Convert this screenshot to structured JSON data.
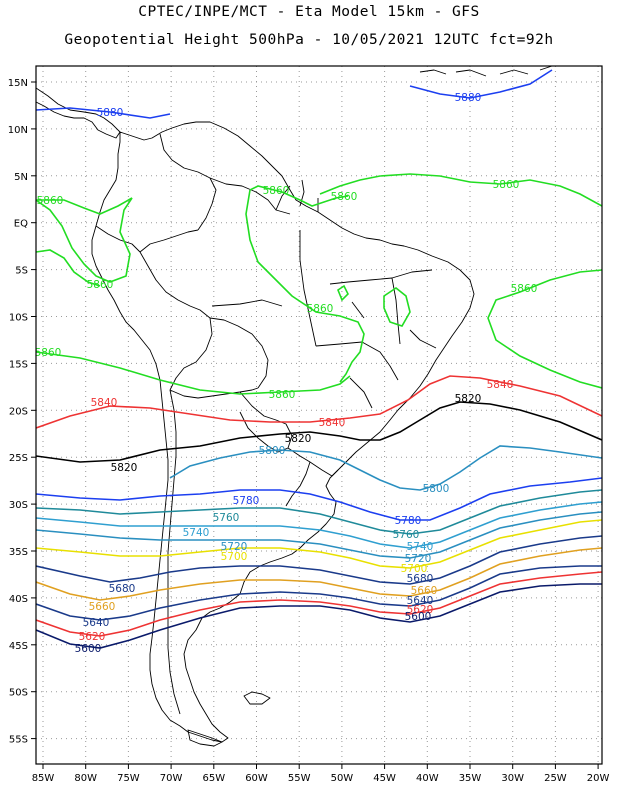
{
  "title_line1": "CPTEC/INPE/MCT -  Eta Model 15km - GFS",
  "title_line2": "Geopotential Height 500hPa - 10/05/2021 12UTC fct=92h",
  "axes": {
    "lon_labels": [
      "85W",
      "80W",
      "75W",
      "70W",
      "65W",
      "60W",
      "55W",
      "50W",
      "45W",
      "40W",
      "35W",
      "30W",
      "25W",
      "20W"
    ],
    "lat_labels": [
      "15N",
      "10N",
      "5N",
      "EQ",
      "5S",
      "10S",
      "15S",
      "20S",
      "25S",
      "30S",
      "35S",
      "40S",
      "45S",
      "50S",
      "55S"
    ]
  },
  "contour_labels": [
    {
      "text": "5880",
      "color": "#1c3ff0"
    },
    {
      "text": "5880",
      "color": "#1c3ff0"
    },
    {
      "text": "5860",
      "color": "#22dd22"
    },
    {
      "text": "5860",
      "color": "#22dd22"
    },
    {
      "text": "5860",
      "color": "#22dd22"
    },
    {
      "text": "5860",
      "color": "#22dd22"
    },
    {
      "text": "5860",
      "color": "#22dd22"
    },
    {
      "text": "5860",
      "color": "#22dd22"
    },
    {
      "text": "5860",
      "color": "#22dd22"
    },
    {
      "text": "5860",
      "color": "#22dd22"
    },
    {
      "text": "5860",
      "color": "#22dd22"
    },
    {
      "text": "5840",
      "color": "#ee3333"
    },
    {
      "text": "5840",
      "color": "#ee3333"
    },
    {
      "text": "5840",
      "color": "#ee3333"
    },
    {
      "text": "5820",
      "color": "#000000"
    },
    {
      "text": "5820",
      "color": "#000000"
    },
    {
      "text": "5820",
      "color": "#000000"
    },
    {
      "text": "5800",
      "color": "#2a8fc0"
    },
    {
      "text": "5800",
      "color": "#2a8fc0"
    },
    {
      "text": "5780",
      "color": "#1c3ff0"
    },
    {
      "text": "5780",
      "color": "#1c3ff0"
    },
    {
      "text": "5760",
      "color": "#1f8a9a"
    },
    {
      "text": "5760",
      "color": "#1f8a9a"
    },
    {
      "text": "5740",
      "color": "#2f9fd0"
    },
    {
      "text": "5740",
      "color": "#2f9fd0"
    },
    {
      "text": "5720",
      "color": "#2a8fc0"
    },
    {
      "text": "5720",
      "color": "#2a8fc0"
    },
    {
      "text": "5700",
      "color": "#e8e000"
    },
    {
      "text": "5700",
      "color": "#e8e000"
    },
    {
      "text": "5680",
      "color": "#1a3a8a"
    },
    {
      "text": "5680",
      "color": "#1a3a8a"
    },
    {
      "text": "5660",
      "color": "#e0a020"
    },
    {
      "text": "5660",
      "color": "#e0a020"
    },
    {
      "text": "5640",
      "color": "#1a3a8a"
    },
    {
      "text": "5640",
      "color": "#1a3a8a"
    },
    {
      "text": "5620",
      "color": "#ee3333"
    },
    {
      "text": "5620",
      "color": "#ee3333"
    },
    {
      "text": "5600",
      "color": "#0a1a6a"
    },
    {
      "text": "5600",
      "color": "#0a1a6a"
    }
  ]
}
